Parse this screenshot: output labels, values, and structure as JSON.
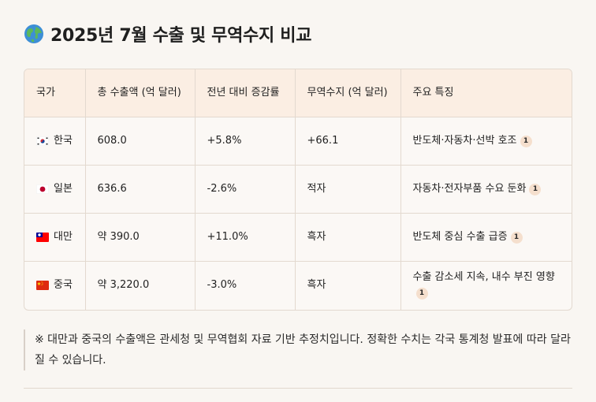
{
  "title": {
    "icon": "globe-icon",
    "text": "2025년 7월 수출 및 무역수지 비교"
  },
  "table": {
    "headers": [
      "국가",
      "총 수출액 (억 달러)",
      "전년 대비 증감률",
      "무역수지 (억 달러)",
      "주요 특징"
    ],
    "rows": [
      {
        "flag": "kr-flag-icon",
        "country": "한국",
        "exports": "608.0",
        "change": "+5.8%",
        "balance": "+66.1",
        "feature": "반도체·자동차·선박 호조",
        "cite": "1"
      },
      {
        "flag": "jp-flag-icon",
        "country": "일본",
        "exports": "636.6",
        "change": "-2.6%",
        "balance": "적자",
        "feature": "자동차·전자부품 수요 둔화",
        "cite": "1"
      },
      {
        "flag": "tw-flag-icon",
        "country": "대만",
        "exports": "약 390.0",
        "change": "+11.0%",
        "balance": "흑자",
        "feature": "반도체 중심 수출 급증",
        "cite": "1"
      },
      {
        "flag": "cn-flag-icon",
        "country": "중국",
        "exports": "약 3,220.0",
        "change": "-3.0%",
        "balance": "흑자",
        "feature": "수출 감소세 지속, 내수 부진 영향",
        "cite": "1"
      }
    ]
  },
  "note": "※ 대만과 중국의 수출액은 관세청 및 무역협회 자료 기반 추정치입니다. 정확한 수치는 각국 통계청 발표에 따라 달라질 수 있습니다."
}
